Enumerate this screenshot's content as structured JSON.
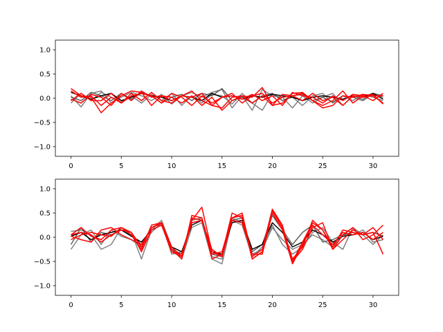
{
  "chart_data": [
    {
      "type": "line",
      "title": "",
      "xlabel": "",
      "ylabel": "",
      "xlim": [
        -1.55,
        32.55
      ],
      "ylim": [
        -1.2,
        1.2
      ],
      "xticks": [
        0,
        5,
        10,
        15,
        20,
        25,
        30
      ],
      "xtick_labels": [
        "0",
        "5",
        "10",
        "15",
        "20",
        "25",
        "30"
      ],
      "yticks": [
        -1.0,
        -0.5,
        0.0,
        0.5,
        1.0
      ],
      "ytick_labels": [
        "−1.0",
        "−0.5",
        "0.0",
        "0.5",
        "1.0"
      ],
      "grid": false,
      "x": [
        0,
        1,
        2,
        3,
        4,
        5,
        6,
        7,
        8,
        9,
        10,
        11,
        12,
        13,
        14,
        15,
        16,
        17,
        18,
        19,
        20,
        21,
        22,
        23,
        24,
        25,
        26,
        27,
        28,
        29,
        30,
        31
      ],
      "series": [
        {
          "color": "#808080",
          "values": [
            0.05,
            -0.18,
            0.1,
            0.15,
            -0.1,
            0.02,
            0.12,
            0.05,
            -0.05,
            0.08,
            -0.12,
            0.05,
            0.12,
            0.02,
            0.12,
            0.18,
            -0.2,
            0.05,
            -0.25,
            0.18,
            0.05,
            0.02,
            -0.2,
            0.05,
            -0.1,
            0.02,
            0.1,
            -0.15,
            0.05,
            -0.02,
            0.08,
            0.02
          ]
        },
        {
          "color": "#808080",
          "values": [
            -0.1,
            0.1,
            -0.05,
            0.12,
            0.02,
            -0.08,
            0.05,
            -0.1,
            0.08,
            -0.05,
            0.1,
            -0.15,
            0.05,
            -0.1,
            0.08,
            0.05,
            -0.12,
            0.1,
            -0.1,
            -0.25,
            0.1,
            -0.05,
            0.02,
            -0.15,
            0.05,
            0.1,
            -0.1,
            0.05,
            -0.05,
            0.08,
            0.02,
            -0.05
          ]
        },
        {
          "color": "#606060",
          "values": [
            0.02,
            -0.05,
            0.12,
            0.05,
            -0.05,
            0.1,
            -0.02,
            0.12,
            0.05,
            -0.1,
            0.02,
            0.08,
            -0.05,
            0.1,
            0.05,
            0.2,
            -0.05,
            0.02,
            -0.1,
            0.05,
            0.1,
            -0.05,
            0.05,
            0.08,
            -0.05,
            0.02,
            -0.08,
            0.05,
            0.02,
            -0.05,
            0.1,
            0.05
          ]
        },
        {
          "color": "#000000",
          "values": [
            0.12,
            0.05,
            -0.02,
            0.05,
            0.1,
            -0.05,
            0.02,
            0.1,
            0.05,
            0.02,
            -0.05,
            0.05,
            0.02,
            -0.05,
            0.1,
            0.02,
            0.05,
            -0.02,
            0.05,
            0.02,
            0.08,
            0.05,
            0.02,
            -0.05,
            0.02,
            0.05,
            0.02,
            -0.02,
            0.05,
            0.02,
            0.1,
            -0.02
          ]
        },
        {
          "color": "#ff0000",
          "values": [
            0.2,
            0.05,
            0.02,
            -0.3,
            -0.1,
            0.05,
            0.15,
            0.12,
            -0.15,
            0.05,
            0.02,
            -0.1,
            0.05,
            -0.15,
            0.02,
            -0.25,
            -0.05,
            0.05,
            0.02,
            0.22,
            -0.15,
            0.08,
            0.05,
            0.1,
            -0.05,
            -0.15,
            -0.05,
            0.15,
            -0.1,
            0.05,
            0.08,
            -0.12
          ]
        },
        {
          "color": "#ff0000",
          "values": [
            -0.05,
            0.1,
            -0.05,
            -0.05,
            0.1,
            -0.1,
            0.1,
            -0.05,
            0.12,
            -0.05,
            -0.1,
            0.05,
            0.15,
            -0.05,
            -0.15,
            -0.2,
            0.02,
            0.05,
            -0.1,
            0.05,
            -0.15,
            -0.1,
            0.1,
            0.12,
            -0.05,
            -0.2,
            -0.15,
            0.05,
            0.02,
            0.08,
            0.05,
            0.05
          ]
        },
        {
          "color": "#ff0000",
          "values": [
            0.15,
            0.02,
            0.05,
            -0.15,
            0.02,
            -0.1,
            0.05,
            0.1,
            0.05,
            -0.1,
            0.1,
            0.02,
            -0.15,
            0.05,
            -0.1,
            0.02,
            0.05,
            -0.02,
            0.08,
            -0.05,
            0.05,
            -0.15,
            0.12,
            0.05,
            0.02,
            -0.1,
            0.05,
            -0.05,
            0.08,
            0.05,
            -0.05,
            0.1
          ]
        },
        {
          "color": "#ff0000",
          "values": [
            -0.02,
            -0.1,
            0.08,
            0.02,
            -0.15,
            0.1,
            -0.05,
            0.15,
            0.02,
            0.05,
            -0.05,
            0.05,
            0.02,
            0.1,
            -0.15,
            0.02,
            0.1,
            -0.1,
            0.05,
            0.1,
            -0.1,
            0.02,
            0.05,
            -0.05,
            0.1,
            -0.05,
            0.02,
            -0.15,
            0.05,
            0.02,
            0.05,
            -0.1
          ]
        }
      ]
    },
    {
      "type": "line",
      "title": "",
      "xlabel": "",
      "ylabel": "",
      "xlim": [
        -1.55,
        32.55
      ],
      "ylim": [
        -1.2,
        1.2
      ],
      "xticks": [
        0,
        5,
        10,
        15,
        20,
        25,
        30
      ],
      "xtick_labels": [
        "0",
        "5",
        "10",
        "15",
        "20",
        "25",
        "30"
      ],
      "yticks": [
        -1.0,
        -0.5,
        0.0,
        0.5,
        1.0
      ],
      "ytick_labels": [
        "−1.0",
        "−0.5",
        "0.0",
        "0.5",
        "1.0"
      ],
      "grid": false,
      "x": [
        0,
        1,
        2,
        3,
        4,
        5,
        6,
        7,
        8,
        9,
        10,
        11,
        12,
        13,
        14,
        15,
        16,
        17,
        18,
        19,
        20,
        21,
        22,
        23,
        24,
        25,
        26,
        27,
        28,
        29,
        30,
        31
      ],
      "series": [
        {
          "color": "#808080",
          "values": [
            0.12,
            0.15,
            0.05,
            -0.25,
            -0.15,
            0.2,
            0.1,
            -0.45,
            0.15,
            0.35,
            -0.2,
            -0.45,
            0.2,
            0.3,
            -0.45,
            -0.55,
            0.35,
            0.25,
            -0.4,
            -0.2,
            0.25,
            -0.15,
            -0.35,
            -0.2,
            0.1,
            0.2,
            -0.1,
            -0.25,
            0.2,
            0.05,
            -0.15,
            0.05
          ]
        },
        {
          "color": "#808080",
          "values": [
            -0.25,
            0.05,
            0.15,
            -0.15,
            0.15,
            0.02,
            -0.05,
            -0.2,
            0.1,
            0.3,
            -0.35,
            -0.3,
            0.3,
            0.35,
            -0.4,
            -0.45,
            0.4,
            0.3,
            -0.35,
            -0.25,
            0.2,
            -0.05,
            -0.25,
            -0.15,
            0.05,
            -0.05,
            -0.2,
            0.05,
            0.05,
            0.15,
            -0.1,
            -0.05
          ]
        },
        {
          "color": "#606060",
          "values": [
            -0.15,
            0.2,
            -0.1,
            0.1,
            0.05,
            0.15,
            0.05,
            -0.15,
            0.2,
            0.3,
            -0.25,
            -0.35,
            0.35,
            0.4,
            -0.35,
            -0.4,
            0.35,
            0.4,
            -0.3,
            -0.15,
            0.45,
            0.15,
            -0.15,
            0.1,
            0.25,
            -0.1,
            -0.05,
            0.05,
            0.1,
            0.05,
            0.1,
            0.02
          ]
        },
        {
          "color": "#000000",
          "values": [
            0.02,
            0.1,
            -0.05,
            0.05,
            0.1,
            0.15,
            0.02,
            -0.1,
            0.15,
            0.25,
            -0.2,
            -0.3,
            0.25,
            0.35,
            -0.3,
            -0.35,
            0.3,
            0.35,
            -0.25,
            -0.15,
            0.3,
            0.1,
            -0.2,
            -0.1,
            0.15,
            0.05,
            -0.1,
            0.02,
            0.05,
            0.1,
            -0.05,
            0.02
          ]
        },
        {
          "color": "#ff0000",
          "values": [
            0.05,
            0.2,
            0.02,
            -0.05,
            0.15,
            0.2,
            0.05,
            -0.25,
            0.25,
            0.3,
            -0.25,
            -0.45,
            0.45,
            0.4,
            -0.45,
            -0.35,
            0.5,
            0.4,
            -0.45,
            -0.3,
            0.55,
            0.2,
            -0.5,
            -0.25,
            0.2,
            0.3,
            -0.25,
            -0.05,
            0.15,
            0.05,
            0.1,
            -0.35
          ]
        },
        {
          "color": "#ff0000",
          "values": [
            -0.05,
            0.05,
            0.1,
            0.05,
            0.02,
            0.2,
            0.1,
            -0.3,
            0.15,
            0.25,
            -0.3,
            -0.35,
            0.35,
            0.62,
            -0.3,
            -0.4,
            0.4,
            0.5,
            -0.4,
            -0.25,
            0.58,
            0.25,
            -0.5,
            -0.1,
            0.3,
            0.15,
            -0.25,
            0.05,
            0.2,
            -0.05,
            0.05,
            0.25
          ]
        },
        {
          "color": "#ff0000",
          "values": [
            0.02,
            -0.05,
            -0.1,
            0.15,
            0.2,
            0.05,
            -0.05,
            -0.15,
            0.2,
            0.3,
            -0.2,
            -0.4,
            0.3,
            0.35,
            -0.25,
            -0.4,
            0.35,
            0.3,
            -0.35,
            -0.35,
            0.5,
            0.15,
            -0.55,
            -0.15,
            0.25,
            0.05,
            -0.15,
            0.1,
            0.05,
            0.1,
            -0.05,
            0.1
          ]
        },
        {
          "color": "#ff0000",
          "values": [
            0.05,
            0.1,
            0.05,
            -0.1,
            0.05,
            0.15,
            0.1,
            -0.2,
            0.2,
            0.28,
            -0.3,
            -0.4,
            0.4,
            0.35,
            -0.35,
            -0.3,
            0.4,
            0.45,
            -0.45,
            -0.3,
            0.55,
            0.2,
            -0.45,
            -0.2,
            0.35,
            0.15,
            -0.2,
            0.15,
            0.1,
            0.05,
            0.2,
            -0.05
          ]
        }
      ]
    }
  ]
}
